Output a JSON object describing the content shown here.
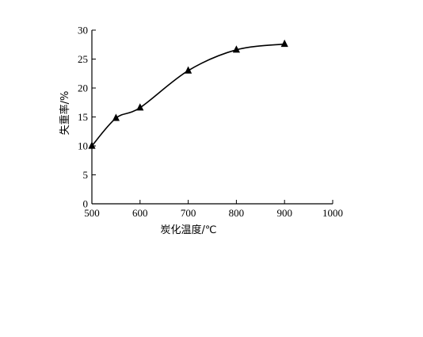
{
  "chart_data": {
    "type": "line",
    "title": "",
    "xlabel": "炭化温度/℃",
    "ylabel": "失重率/%",
    "xlim": [
      500,
      1000
    ],
    "ylim": [
      0,
      30
    ],
    "xticks": [
      500,
      600,
      700,
      800,
      900,
      1000
    ],
    "yticks": [
      0,
      5,
      10,
      15,
      20,
      25,
      30
    ],
    "grid": false,
    "legend": "none",
    "marker": "triangle",
    "smooth": true,
    "series": [
      {
        "x": [
          500,
          550,
          600,
          700,
          800,
          900
        ],
        "y": [
          10.0,
          14.8,
          16.6,
          23.0,
          26.6,
          27.6
        ]
      }
    ],
    "colors": {
      "line": "#000000",
      "marker": "#000000",
      "axis": "#000000"
    }
  }
}
